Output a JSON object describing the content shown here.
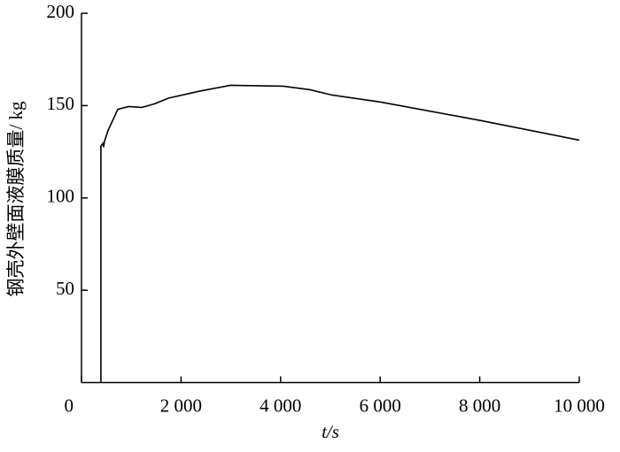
{
  "chart_data": {
    "type": "line",
    "x_label": "t/s",
    "y_label": "钢壳外壁面液膜质量/ kg",
    "x": [
      390,
      390,
      430,
      445,
      460,
      535,
      730,
      945,
      1210,
      1475,
      1745,
      2370,
      2990,
      4055,
      4590,
      5035,
      6015,
      8000,
      10000
    ],
    "series": [
      {
        "color": "#000000",
        "values": [
          0,
          128,
          129.5,
          127.5,
          130.5,
          136.6,
          148,
          149.5,
          149,
          151,
          154,
          157.8,
          161,
          160.5,
          158.6,
          155.7,
          151.9,
          142,
          131.3
        ]
      }
    ],
    "xlim": [
      0,
      10000
    ],
    "xticks": [
      0,
      {
        "value": 2000,
        "label": "2 000"
      },
      {
        "value": 4000,
        "label": "4 000"
      },
      {
        "value": 6000,
        "label": "6 000"
      },
      {
        "value": 8000,
        "label": "8 000"
      },
      {
        "value": 10000,
        "label": "10 000"
      }
    ],
    "ylim": [
      0,
      200
    ],
    "yticks": [
      50,
      100,
      150,
      200
    ],
    "grid": false
  }
}
